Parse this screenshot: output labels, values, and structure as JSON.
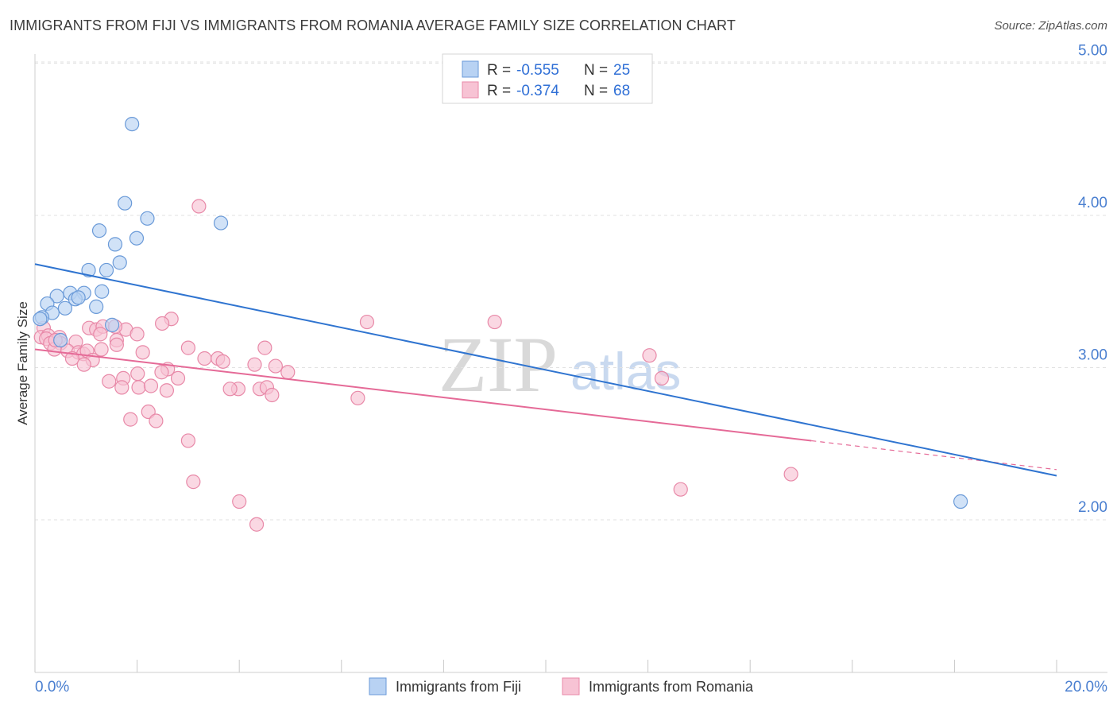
{
  "title": "IMMIGRANTS FROM FIJI VS IMMIGRANTS FROM ROMANIA AVERAGE FAMILY SIZE CORRELATION CHART",
  "source": "Source: ZipAtlas.com",
  "watermark": {
    "part1": "ZIP",
    "part2": "atlas"
  },
  "colors": {
    "fiji_fill": "#b8d2f3",
    "fiji_stroke": "#6a9ad8",
    "fiji_line": "#2f74d0",
    "romania_fill": "#f7c3d4",
    "romania_stroke": "#e889a8",
    "romania_line": "#e56a97",
    "grid": "#e2e2e2",
    "axis_label": "#4a7fd0"
  },
  "legend": {
    "rows": [
      {
        "r_label": "R =",
        "r_value": "-0.555",
        "n_label": "N =",
        "n_value": "25"
      },
      {
        "r_label": "R =",
        "r_value": "-0.374",
        "n_label": "N =",
        "n_value": "68"
      }
    ]
  },
  "chart_data": {
    "type": "scatter",
    "title": "IMMIGRANTS FROM FIJI VS IMMIGRANTS FROM ROMANIA AVERAGE FAMILY SIZE CORRELATION CHART",
    "xlabel": "",
    "ylabel": "Average Family Size",
    "xlim": [
      0,
      20
    ],
    "ylim": [
      1.0,
      5.1
    ],
    "x_tick_labels": [
      "0.0%",
      "20.0%"
    ],
    "y_ticks": [
      2.0,
      3.0,
      4.0,
      5.0
    ],
    "y_tick_labels": [
      "2.00",
      "3.00",
      "4.00",
      "5.00"
    ],
    "grid": true,
    "legend_position": "top-center",
    "series": [
      {
        "name": "Immigrants from Fiji",
        "r": -0.555,
        "n": 25,
        "trend": {
          "x0": 0.0,
          "y0": 3.68,
          "x1": 20.0,
          "y1": 2.29,
          "solid_to": 20.0
        },
        "points": [
          [
            1.9,
            4.6
          ],
          [
            1.76,
            4.08
          ],
          [
            2.2,
            3.98
          ],
          [
            3.64,
            3.95
          ],
          [
            1.26,
            3.9
          ],
          [
            1.99,
            3.85
          ],
          [
            1.57,
            3.81
          ],
          [
            1.66,
            3.69
          ],
          [
            1.05,
            3.64
          ],
          [
            1.4,
            3.64
          ],
          [
            0.69,
            3.49
          ],
          [
            0.96,
            3.49
          ],
          [
            1.31,
            3.5
          ],
          [
            0.43,
            3.47
          ],
          [
            0.79,
            3.45
          ],
          [
            0.85,
            3.46
          ],
          [
            0.24,
            3.42
          ],
          [
            0.59,
            3.39
          ],
          [
            1.2,
            3.4
          ],
          [
            0.34,
            3.36
          ],
          [
            0.14,
            3.33
          ],
          [
            0.1,
            3.32
          ],
          [
            0.5,
            3.18
          ],
          [
            1.51,
            3.28
          ],
          [
            18.12,
            2.12
          ]
        ]
      },
      {
        "name": "Immigrants from Romania",
        "r": -0.374,
        "n": 68,
        "trend": {
          "x0": 0.0,
          "y0": 3.12,
          "x1": 20.0,
          "y1": 2.33,
          "solid_to": 15.2
        },
        "points": [
          [
            3.21,
            4.06
          ],
          [
            6.5,
            3.3
          ],
          [
            9.0,
            3.3
          ],
          [
            2.67,
            3.32
          ],
          [
            2.49,
            3.29
          ],
          [
            0.17,
            3.26
          ],
          [
            1.06,
            3.26
          ],
          [
            1.2,
            3.25
          ],
          [
            1.33,
            3.27
          ],
          [
            1.78,
            3.25
          ],
          [
            1.57,
            3.27
          ],
          [
            0.12,
            3.2
          ],
          [
            0.26,
            3.21
          ],
          [
            0.48,
            3.2
          ],
          [
            0.8,
            3.17
          ],
          [
            1.28,
            3.22
          ],
          [
            2.0,
            3.22
          ],
          [
            1.6,
            3.18
          ],
          [
            0.22,
            3.19
          ],
          [
            0.3,
            3.16
          ],
          [
            0.5,
            3.16
          ],
          [
            0.38,
            3.12
          ],
          [
            0.64,
            3.11
          ],
          [
            0.85,
            3.1
          ],
          [
            0.95,
            3.09
          ],
          [
            1.02,
            3.11
          ],
          [
            1.3,
            3.12
          ],
          [
            1.6,
            3.15
          ],
          [
            2.11,
            3.1
          ],
          [
            3.0,
            3.13
          ],
          [
            4.5,
            3.13
          ],
          [
            0.73,
            3.06
          ],
          [
            1.13,
            3.05
          ],
          [
            0.96,
            3.02
          ],
          [
            3.32,
            3.06
          ],
          [
            3.58,
            3.06
          ],
          [
            3.68,
            3.04
          ],
          [
            4.3,
            3.02
          ],
          [
            4.71,
            3.01
          ],
          [
            4.95,
            2.97
          ],
          [
            2.01,
            2.96
          ],
          [
            2.6,
            2.99
          ],
          [
            2.48,
            2.97
          ],
          [
            2.8,
            2.93
          ],
          [
            1.73,
            2.93
          ],
          [
            1.45,
            2.91
          ],
          [
            1.7,
            2.87
          ],
          [
            2.03,
            2.87
          ],
          [
            2.27,
            2.88
          ],
          [
            2.58,
            2.85
          ],
          [
            3.98,
            2.86
          ],
          [
            4.4,
            2.86
          ],
          [
            4.54,
            2.87
          ],
          [
            3.82,
            2.86
          ],
          [
            4.64,
            2.82
          ],
          [
            6.32,
            2.8
          ],
          [
            12.03,
            3.08
          ],
          [
            12.27,
            2.93
          ],
          [
            2.22,
            2.71
          ],
          [
            1.87,
            2.66
          ],
          [
            2.37,
            2.65
          ],
          [
            3.0,
            2.52
          ],
          [
            3.1,
            2.25
          ],
          [
            4.0,
            2.12
          ],
          [
            4.34,
            1.97
          ],
          [
            12.64,
            2.2
          ],
          [
            14.8,
            2.3
          ],
          [
            0.4,
            3.18
          ]
        ]
      }
    ]
  },
  "bottom_legend": {
    "items": [
      "Immigrants from Fiji",
      "Immigrants from Romania"
    ]
  }
}
